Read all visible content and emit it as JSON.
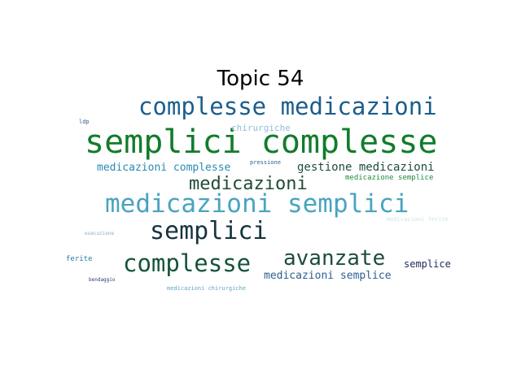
{
  "title": "Topic 54",
  "words": [
    {
      "text": "complesse medicazioni",
      "color": "#1b5e8c"
    },
    {
      "text": "semplici complesse",
      "color": "#127c2b"
    },
    {
      "text": "chirurgiche",
      "color": "#8fc0d4"
    },
    {
      "text": "ldp",
      "color": "#355c8a"
    },
    {
      "text": "pressione",
      "color": "#2f5f8f"
    },
    {
      "text": "medicazioni complesse",
      "color": "#2a8ab3"
    },
    {
      "text": "gestione medicazioni",
      "color": "#1e4d3c"
    },
    {
      "text": "medicazione semplice",
      "color": "#1f8a3a"
    },
    {
      "text": "medicazioni",
      "color": "#1f4d35"
    },
    {
      "text": "medicazioni semplici",
      "color": "#4aa3c0"
    },
    {
      "text": "medicazioni ferite",
      "color": "#cde3ea"
    },
    {
      "text": "semplici",
      "color": "#16333f"
    },
    {
      "text": "esecuzione",
      "color": "#7fb3c6"
    },
    {
      "text": "ferite",
      "color": "#2b7aa0"
    },
    {
      "text": "complesse",
      "color": "#15543a"
    },
    {
      "text": "avanzate",
      "color": "#1e4d3c"
    },
    {
      "text": "semplice",
      "color": "#1e2a5a"
    },
    {
      "text": "medicazioni semplice",
      "color": "#2c5f8f"
    },
    {
      "text": "bendaggio",
      "color": "#28406e"
    },
    {
      "text": "medicazioni chirurgiche",
      "color": "#5ea7c4"
    }
  ]
}
